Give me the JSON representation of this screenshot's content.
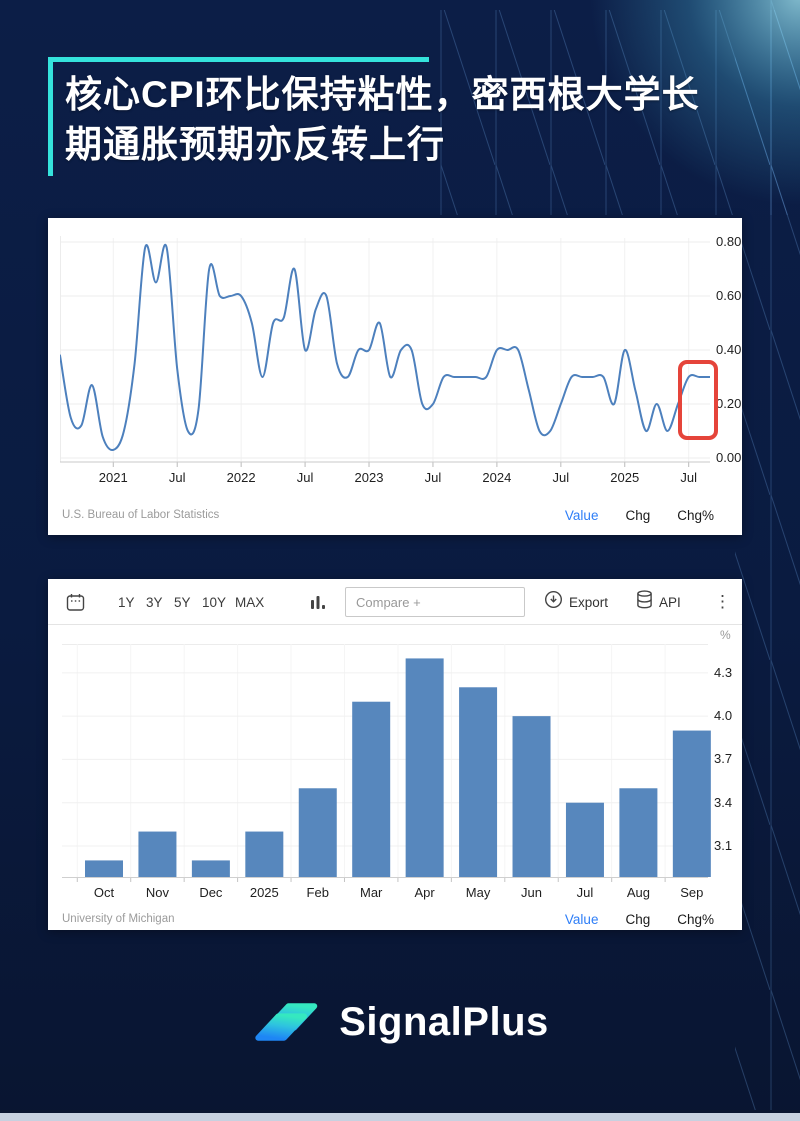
{
  "page": {
    "title_line1": "核心CPI环比保持粘性，密西根大学长",
    "title_line2": "期通胀预期亦反转上行",
    "brand": "SignalPlus",
    "accent_color": "#35e3dc",
    "background_color": "#0a1b40",
    "bottom_strip_color": "#c7d1e0"
  },
  "icons": {
    "calendar": "calendar-icon",
    "column_chart": "column-chart-icon",
    "export": "export-download-icon",
    "api": "database-icon",
    "menu": "kebab-menu-icon"
  },
  "chart_data": [
    {
      "type": "line",
      "source": "U.S. Bureau of Labor Statistics",
      "legend": [
        "Value",
        "Chg",
        "Chg%"
      ],
      "active_legend": "Value",
      "line_color": "#4d80bd",
      "grid": true,
      "y_tick_labels": [
        "0.80",
        "0.60",
        "0.40",
        "0.20",
        "0.00"
      ],
      "ylim": [
        -0.02,
        0.85
      ],
      "x_tick_labels": [
        "2021",
        "Jul",
        "2022",
        "Jul",
        "2023",
        "Jul",
        "2024",
        "Jul",
        "2025",
        "Jul"
      ],
      "x_tick_indices": [
        5,
        11,
        17,
        23,
        29,
        35,
        41,
        47,
        53,
        59
      ],
      "values": [
        0.38,
        0.15,
        0.12,
        0.27,
        0.08,
        0.03,
        0.1,
        0.35,
        0.78,
        0.65,
        0.78,
        0.33,
        0.1,
        0.18,
        0.7,
        0.6,
        0.6,
        0.6,
        0.5,
        0.3,
        0.5,
        0.52,
        0.7,
        0.4,
        0.55,
        0.6,
        0.35,
        0.3,
        0.4,
        0.4,
        0.5,
        0.3,
        0.4,
        0.4,
        0.2,
        0.2,
        0.3,
        0.3,
        0.3,
        0.3,
        0.3,
        0.4,
        0.4,
        0.4,
        0.25,
        0.1,
        0.1,
        0.2,
        0.3,
        0.3,
        0.3,
        0.3,
        0.2,
        0.4,
        0.25,
        0.1,
        0.2,
        0.1,
        0.2,
        0.3,
        0.3,
        0.3
      ],
      "highlight_box_color": "#e5443a"
    },
    {
      "type": "bar",
      "source": "University of Michigan",
      "legend": [
        "Value",
        "Chg",
        "Chg%"
      ],
      "active_legend": "Value",
      "unit": "%",
      "bar_color": "#5787bd",
      "grid": true,
      "toolbar": {
        "ranges": [
          "1Y",
          "3Y",
          "5Y",
          "10Y",
          "MAX"
        ],
        "compare_placeholder": "Compare +",
        "export_label": "Export",
        "api_label": "API"
      },
      "categories": [
        "Oct",
        "Nov",
        "Dec",
        "2025",
        "Feb",
        "Mar",
        "Apr",
        "May",
        "Jun",
        "Jul",
        "Aug",
        "Sep"
      ],
      "values": [
        3.0,
        3.2,
        3.0,
        3.2,
        3.5,
        4.1,
        4.4,
        4.2,
        4.0,
        3.4,
        3.5,
        3.9
      ],
      "y_tick_labels": [
        "4.3",
        "4.0",
        "3.7",
        "3.4",
        "3.1"
      ],
      "ylim": [
        2.885,
        4.5
      ]
    }
  ]
}
